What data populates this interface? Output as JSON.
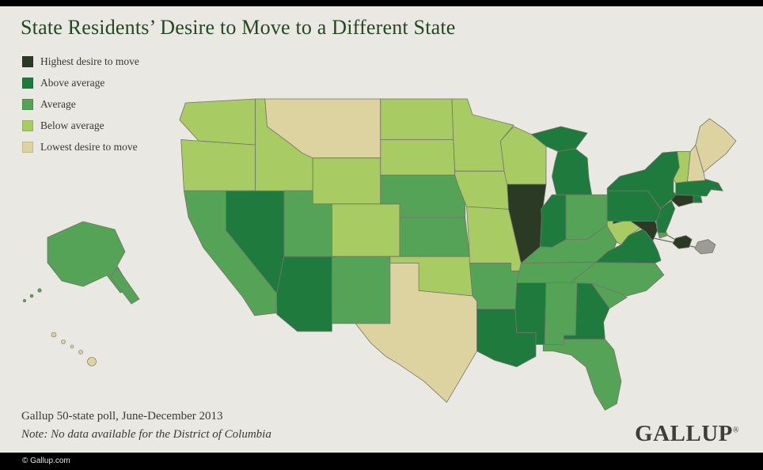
{
  "title": "State Residents’ Desire to Move to a Different State",
  "legend": {
    "items": [
      {
        "key": "highest",
        "label": "Highest desire to move"
      },
      {
        "key": "above_average",
        "label": "Above average"
      },
      {
        "key": "average",
        "label": "Average"
      },
      {
        "key": "below_average",
        "label": "Below average"
      },
      {
        "key": "lowest",
        "label": "Lowest desire to move"
      }
    ]
  },
  "colors": {
    "highest": "#2b3a25",
    "above_average": "#1e7b3d",
    "average": "#55a356",
    "below_average": "#a9cb63",
    "lowest": "#dcd3a0",
    "no_data": "#9c9c94",
    "state_border": "#75756a",
    "title": "#254721",
    "text": "#3a3a30",
    "background": "#e9e8e2",
    "bar": "#000000"
  },
  "footer": {
    "source_line": "Gallup 50-state poll, June-December 2013",
    "note_line": "Note: No data available for the District of Columbia",
    "brand": "GALLUP",
    "brand_mark": "®"
  },
  "footer_bar": {
    "copyright": "© Gallup.com"
  },
  "map_data": {
    "type": "choropleth",
    "region": "United States",
    "categories": [
      "highest",
      "above_average",
      "average",
      "below_average",
      "lowest",
      "no_data"
    ],
    "states": {
      "AL": "average",
      "AK": "average",
      "AZ": "above_average",
      "AR": "average",
      "CA": "average",
      "CO": "below_average",
      "CT": "highest",
      "DE": "average",
      "FL": "average",
      "GA": "above_average",
      "HI": "lowest",
      "ID": "below_average",
      "IL": "highest",
      "IN": "above_average",
      "IA": "below_average",
      "KS": "average",
      "KY": "average",
      "LA": "above_average",
      "ME": "lowest",
      "MD": "highest",
      "MA": "above_average",
      "MI": "above_average",
      "MN": "below_average",
      "MS": "above_average",
      "MO": "below_average",
      "MT": "lowest",
      "NE": "average",
      "NV": "above_average",
      "NH": "lowest",
      "NJ": "above_average",
      "NM": "average",
      "NY": "above_average",
      "NC": "average",
      "ND": "below_average",
      "OH": "average",
      "OK": "below_average",
      "OR": "below_average",
      "PA": "above_average",
      "RI": "above_average",
      "SC": "average",
      "SD": "below_average",
      "TN": "average",
      "TX": "lowest",
      "UT": "average",
      "VT": "below_average",
      "VA": "above_average",
      "WA": "below_average",
      "WV": "below_average",
      "WI": "below_average",
      "WY": "below_average",
      "DC": "no_data"
    }
  }
}
